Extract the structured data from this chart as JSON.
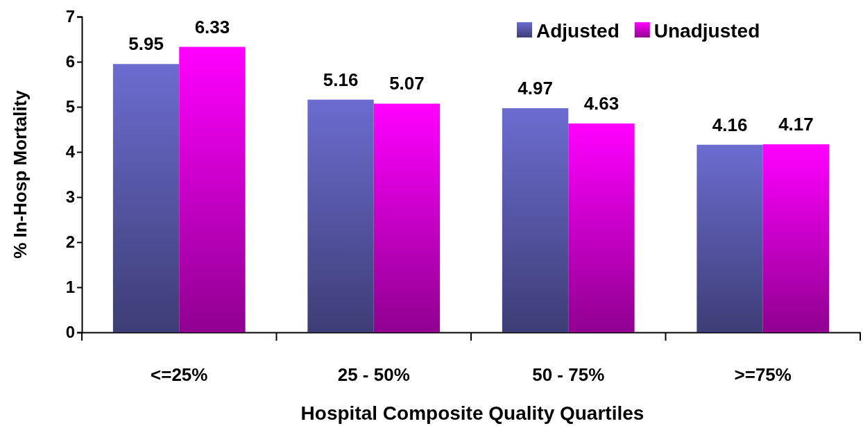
{
  "chart_data": {
    "type": "bar",
    "xlabel": "Hospital Composite Quality Quartiles",
    "ylabel": "% In-Hosp Mortality",
    "categories": [
      "<=25%",
      "25 - 50%",
      "50 - 75%",
      ">=75%"
    ],
    "series": [
      {
        "name": "Adjusted",
        "color": "#6c6cd0",
        "values": [
          5.95,
          5.16,
          4.97,
          4.16
        ]
      },
      {
        "name": "Unadjusted",
        "color": "#ff00ff",
        "values": [
          6.33,
          5.07,
          4.63,
          4.17
        ]
      }
    ],
    "ylim": [
      0,
      7
    ],
    "yticks": [
      0,
      1,
      2,
      3,
      4,
      5,
      6,
      7
    ],
    "grid": false,
    "legend": "top right",
    "data_labels": true
  }
}
